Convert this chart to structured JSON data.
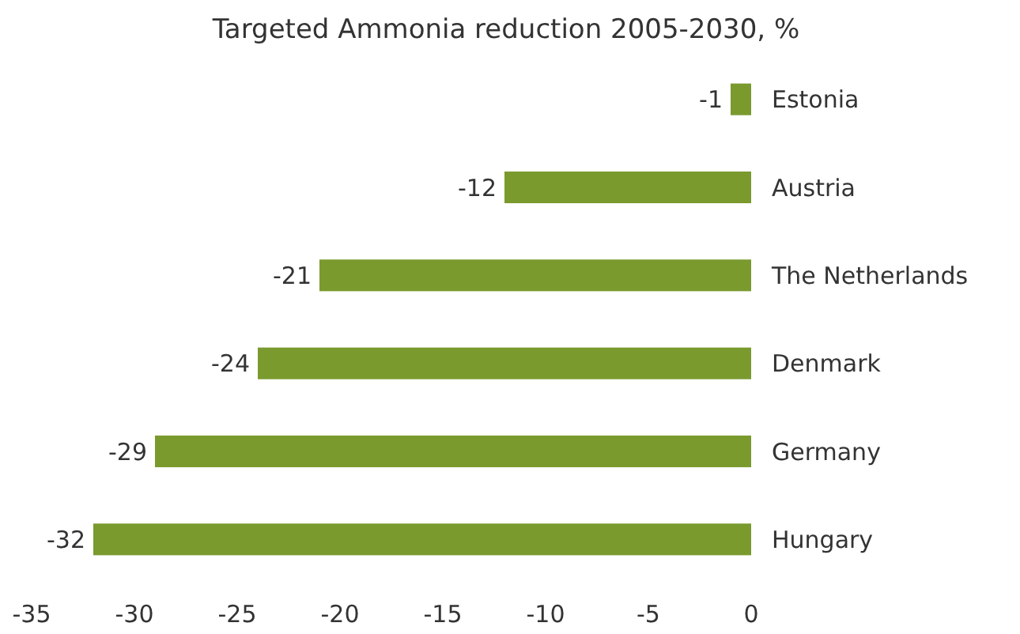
{
  "chart_data": {
    "type": "bar",
    "orientation": "horizontal",
    "title": "Targeted Ammonia reduction 2005-2030, %",
    "categories": [
      "Estonia",
      "Austria",
      "The Netherlands",
      "Denmark",
      "Germany",
      "Hungary"
    ],
    "values": [
      -1,
      -12,
      -21,
      -24,
      -29,
      -32
    ],
    "color": "#7a9a2e",
    "xlim": [
      -35,
      0
    ],
    "xticks": [
      -35,
      -30,
      -25,
      -20,
      -15,
      -10,
      -5,
      0
    ],
    "data_labels": true
  }
}
